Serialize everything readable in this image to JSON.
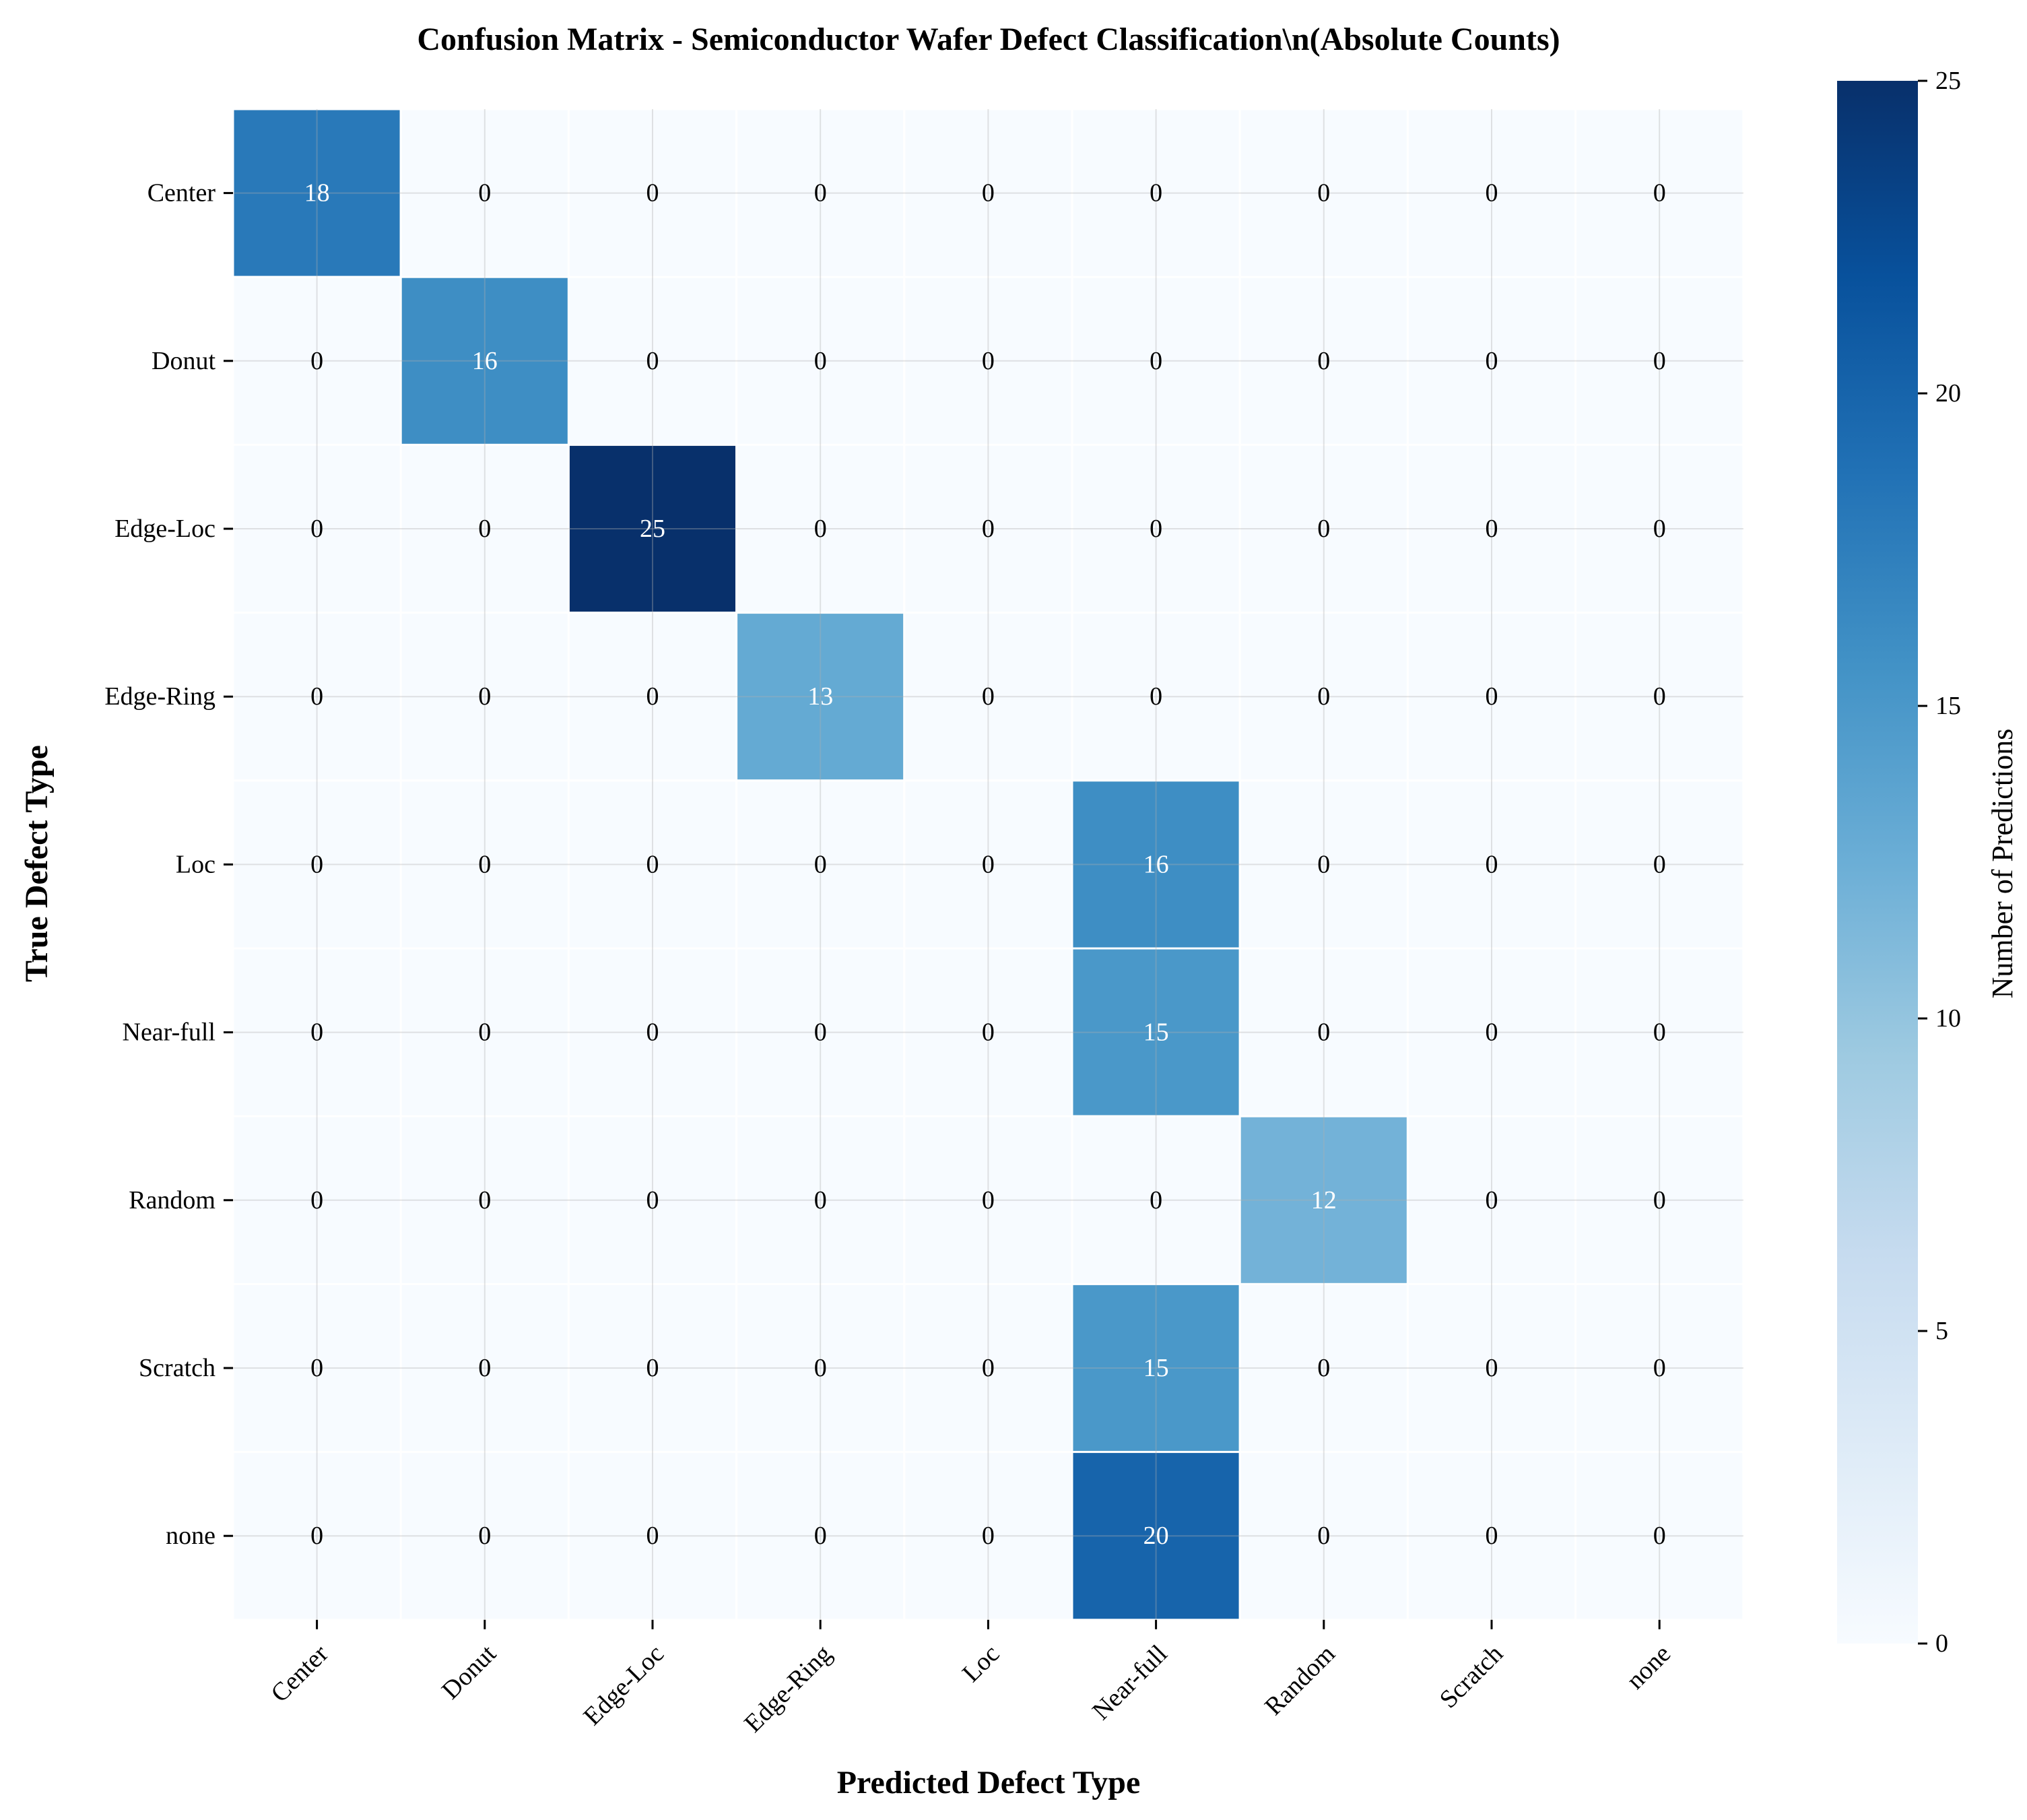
{
  "chart_data": {
    "type": "heatmap",
    "title": "Confusion Matrix - Semiconductor Wafer Defect Classification\\n(Absolute Counts)",
    "xlabel": "Predicted Defect Type",
    "ylabel": "True Defect Type",
    "x_categories": [
      "Center",
      "Donut",
      "Edge-Loc",
      "Edge-Ring",
      "Loc",
      "Near-full",
      "Random",
      "Scratch",
      "none"
    ],
    "y_categories": [
      "Center",
      "Donut",
      "Edge-Loc",
      "Edge-Ring",
      "Loc",
      "Near-full",
      "Random",
      "Scratch",
      "none"
    ],
    "values": [
      [
        18,
        0,
        0,
        0,
        0,
        0,
        0,
        0,
        0
      ],
      [
        0,
        16,
        0,
        0,
        0,
        0,
        0,
        0,
        0
      ],
      [
        0,
        0,
        25,
        0,
        0,
        0,
        0,
        0,
        0
      ],
      [
        0,
        0,
        0,
        13,
        0,
        0,
        0,
        0,
        0
      ],
      [
        0,
        0,
        0,
        0,
        0,
        16,
        0,
        0,
        0
      ],
      [
        0,
        0,
        0,
        0,
        0,
        15,
        0,
        0,
        0
      ],
      [
        0,
        0,
        0,
        0,
        0,
        0,
        12,
        0,
        0
      ],
      [
        0,
        0,
        0,
        0,
        0,
        15,
        0,
        0,
        0
      ],
      [
        0,
        0,
        0,
        0,
        0,
        20,
        0,
        0,
        0
      ]
    ],
    "colorbar": {
      "label": "Number of Predictions",
      "range": [
        0,
        25
      ],
      "ticks": [
        0,
        5,
        10,
        15,
        20,
        25
      ],
      "colormap": "Blues"
    },
    "grid": true
  }
}
